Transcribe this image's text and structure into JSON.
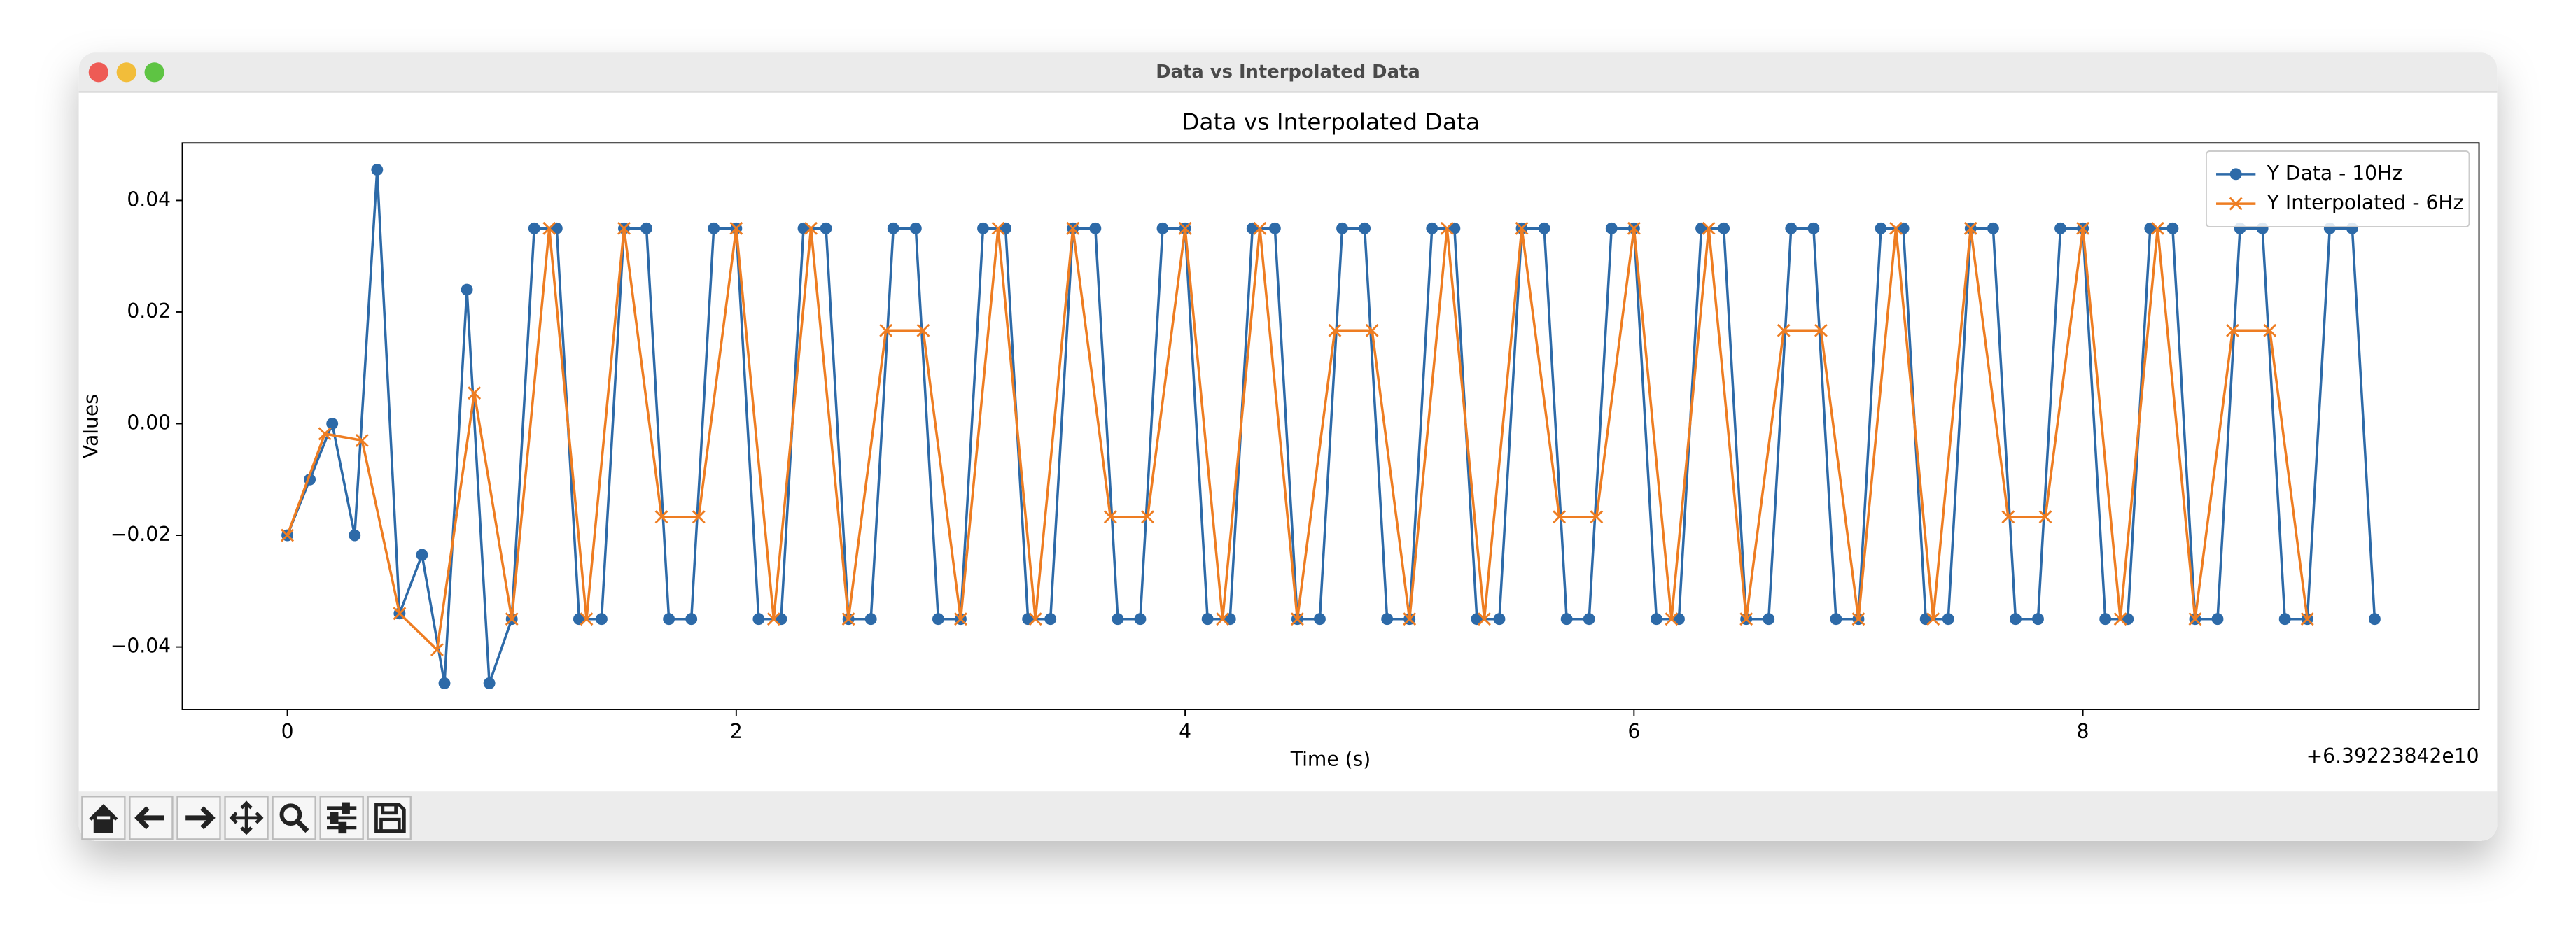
{
  "window_title": "Data vs Interpolated Data",
  "chart_data": {
    "type": "line",
    "title": "Data vs Interpolated Data",
    "x_label": "Time (s)",
    "y_label": "Values",
    "x_offset_label": "+6.39223842e10",
    "xlim": [
      -0.468,
      9.765
    ],
    "ylim": [
      -0.0512,
      0.0503
    ],
    "xticks": [
      0,
      2,
      4,
      6,
      8
    ],
    "yticks": [
      {
        "value": -0.04,
        "label": "−0.04"
      },
      {
        "value": -0.02,
        "label": "−0.02"
      },
      {
        "value": 0,
        "label": "0.00"
      },
      {
        "value": 0.02,
        "label": "0.02"
      },
      {
        "value": 0.04,
        "label": "0.04"
      }
    ],
    "grid": false,
    "legend": "upper right",
    "series": [
      {
        "name": "Y Data - 10Hz",
        "color": "#2d6aa8",
        "marker": "circle",
        "x": [
          0,
          0.1,
          0.2,
          0.3,
          0.4,
          0.5,
          0.6,
          0.7,
          0.8,
          0.9,
          1,
          1.1,
          1.2,
          1.3,
          1.4,
          1.5,
          1.6,
          1.7,
          1.8,
          1.9,
          2,
          2.1,
          2.2,
          2.3,
          2.4,
          2.5,
          2.6,
          2.7,
          2.8,
          2.9,
          3,
          3.1,
          3.2,
          3.3,
          3.4,
          3.5,
          3.6,
          3.7,
          3.8,
          3.9,
          4,
          4.1,
          4.2,
          4.3,
          4.4,
          4.5,
          4.6,
          4.7,
          4.8,
          4.9,
          5,
          5.1,
          5.2,
          5.3,
          5.4,
          5.5,
          5.6,
          5.7,
          5.8,
          5.9,
          6,
          6.1,
          6.2,
          6.3,
          6.4,
          6.5,
          6.6,
          6.7,
          6.8,
          6.9,
          7,
          7.1,
          7.2,
          7.3,
          7.4,
          7.5,
          7.6,
          7.7,
          7.8,
          7.9,
          8,
          8.1,
          8.2,
          8.3,
          8.4,
          8.5,
          8.6,
          8.7,
          8.8,
          8.9,
          9,
          9.1,
          9.2,
          9.3
        ],
        "values": [
          -0.02,
          -0.01,
          0.0,
          -0.02,
          0.0455,
          -0.034,
          -0.0235,
          -0.0465,
          0.024,
          -0.0465,
          -0.035,
          0.035,
          0.035,
          -0.035,
          -0.035,
          0.035,
          0.035,
          -0.035,
          -0.035,
          0.035,
          0.035,
          -0.035,
          -0.035,
          0.035,
          0.035,
          -0.035,
          -0.035,
          0.035,
          0.035,
          -0.035,
          -0.035,
          0.035,
          0.035,
          -0.035,
          -0.035,
          0.035,
          0.035,
          -0.035,
          -0.035,
          0.035,
          0.035,
          -0.035,
          -0.035,
          0.035,
          0.035,
          -0.035,
          -0.035,
          0.035,
          0.035,
          -0.035,
          -0.035,
          0.035,
          0.035,
          -0.035,
          -0.035,
          0.035,
          0.035,
          -0.035,
          -0.035,
          0.035,
          0.035,
          -0.035,
          -0.035,
          0.035,
          0.035,
          -0.035,
          -0.035,
          0.035,
          0.035,
          -0.035,
          -0.035,
          0.035,
          0.035,
          -0.035,
          -0.035,
          0.035,
          0.035,
          -0.035,
          -0.035,
          0.035,
          0.035,
          -0.035,
          -0.035,
          0.035,
          0.035,
          -0.035,
          -0.035,
          0.035,
          0.035,
          -0.035,
          -0.035,
          0.035,
          0.035,
          -0.035
        ]
      },
      {
        "name": "Y Interpolated - 6Hz",
        "color": "#ee7d22",
        "marker": "x",
        "x": [
          0,
          0.167,
          0.333,
          0.5,
          0.667,
          0.833,
          1,
          1.167,
          1.333,
          1.5,
          1.667,
          1.833,
          2,
          2.167,
          2.333,
          2.5,
          2.667,
          2.833,
          3,
          3.167,
          3.333,
          3.5,
          3.667,
          3.833,
          4,
          4.167,
          4.333,
          4.5,
          4.667,
          4.833,
          5,
          5.167,
          5.333,
          5.5,
          5.667,
          5.833,
          6,
          6.167,
          6.333,
          6.5,
          6.667,
          6.833,
          7,
          7.167,
          7.333,
          7.5,
          7.667,
          7.833,
          8,
          8.167,
          8.333,
          8.5,
          8.667,
          8.833,
          9
        ],
        "values": [
          -0.02,
          -0.0018,
          -0.003,
          -0.034,
          -0.0405,
          0.0055,
          -0.035,
          0.035,
          -0.035,
          0.035,
          -0.0167,
          -0.0167,
          0.035,
          -0.035,
          0.035,
          -0.035,
          0.0167,
          0.0167,
          -0.035,
          0.035,
          -0.035,
          0.035,
          -0.0167,
          -0.0167,
          0.035,
          -0.035,
          0.035,
          -0.035,
          0.0167,
          0.0167,
          -0.035,
          0.035,
          -0.035,
          0.035,
          -0.0167,
          -0.0167,
          0.035,
          -0.035,
          0.035,
          -0.035,
          0.0167,
          0.0167,
          -0.035,
          0.035,
          -0.035,
          0.035,
          -0.0167,
          -0.0167,
          0.035,
          -0.035,
          0.035,
          -0.035,
          0.0167,
          0.0167,
          -0.035
        ]
      }
    ]
  }
}
